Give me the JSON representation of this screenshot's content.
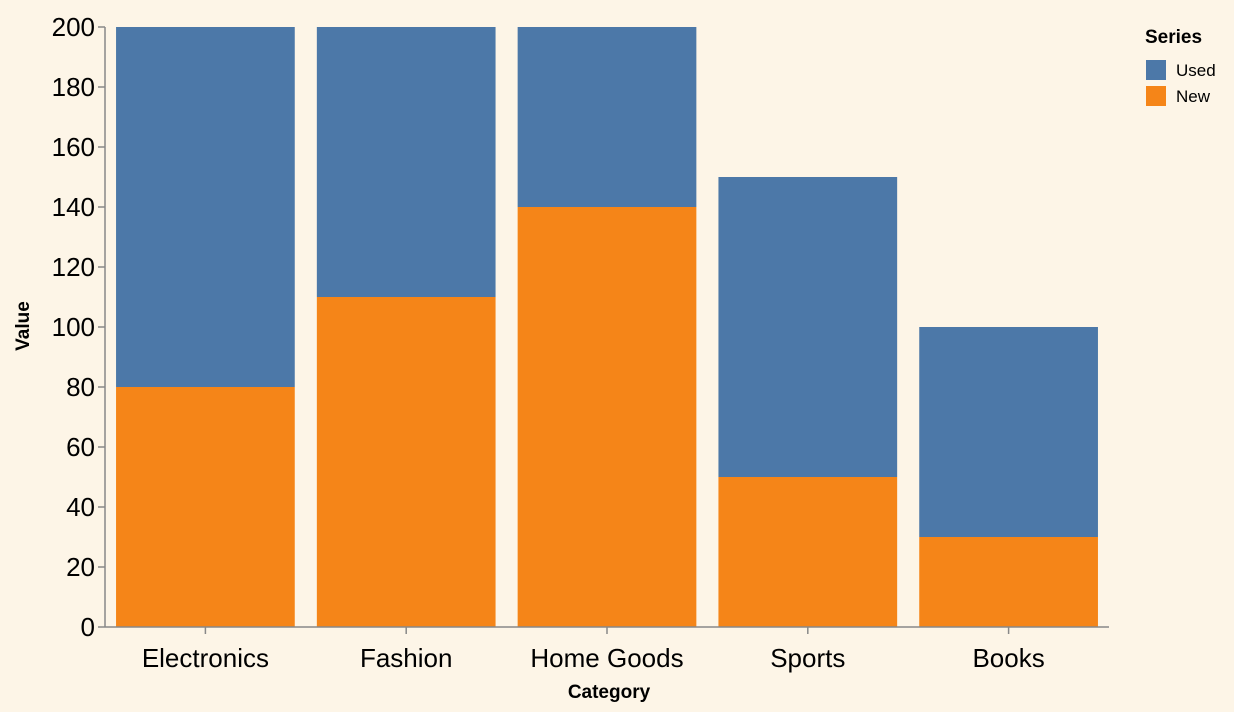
{
  "chart_data": {
    "type": "bar",
    "stacked": true,
    "categories": [
      "Electronics",
      "Fashion",
      "Home Goods",
      "Sports",
      "Books"
    ],
    "series": [
      {
        "name": "New",
        "values": [
          80,
          110,
          140,
          50,
          30
        ],
        "color": "#f58518"
      },
      {
        "name": "Used",
        "values": [
          120,
          90,
          60,
          100,
          70
        ],
        "color": "#4c78a8"
      }
    ],
    "xlabel": "Category",
    "ylabel": "Value",
    "ylim": [
      0,
      200
    ],
    "yticks": [
      0,
      20,
      40,
      60,
      80,
      100,
      120,
      140,
      160,
      180,
      200
    ],
    "grid": false,
    "legend": {
      "title": "Series",
      "placement": "top-right",
      "items": [
        {
          "label": "Used",
          "color": "#4c78a8"
        },
        {
          "label": "New",
          "color": "#f58518"
        }
      ]
    }
  }
}
